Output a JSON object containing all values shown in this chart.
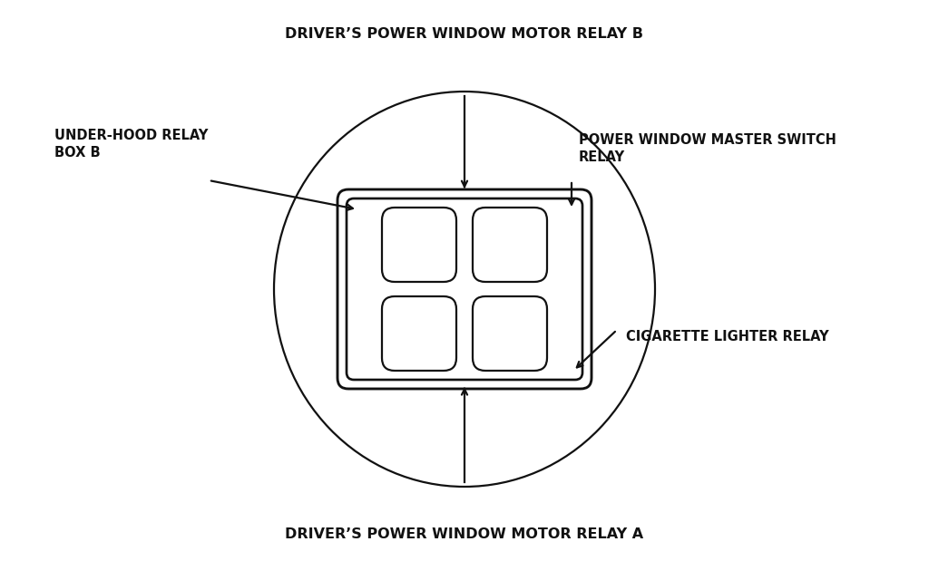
{
  "background_color": "#ffffff",
  "text_color": "#111111",
  "title_top": "DRIVER’S POWER WINDOW MOTOR RELAY B",
  "title_bottom": "DRIVER’S POWER WINDOW MOTOR RELAY A",
  "label_top_left": "UNDER-HOOD RELAY\nBOX B",
  "label_top_right": "POWER WINDOW MASTER SWITCH\nRELAY",
  "label_bottom_right": "CIGARETTE LIGHTER RELAY",
  "fig_width": 10.24,
  "fig_height": 6.19,
  "dpi": 100,
  "line_color": "#111111",
  "line_width": 1.6,
  "font_size_labels": 10.5,
  "font_size_title": 11.5
}
